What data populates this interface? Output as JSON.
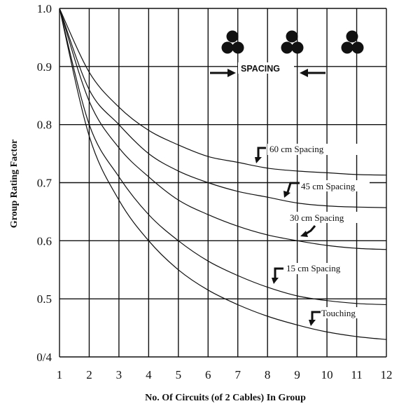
{
  "chart_data": {
    "type": "line",
    "xlabel": "No. Of Circuits (of 2 Cables) In Group",
    "ylabel": "Group Rating Factor",
    "xlim": [
      1,
      12
    ],
    "ylim": [
      0.4,
      1.0
    ],
    "x_ticks": [
      "1",
      "2",
      "3",
      "4",
      "5",
      "6",
      "7",
      "8",
      "9",
      "10",
      "11",
      "12"
    ],
    "y_ticks": [
      "0/4",
      "0.5",
      "0.6",
      "0.7",
      "0.8",
      "0.9",
      "1.0"
    ],
    "grid": true,
    "series": [
      {
        "name": "60 cm Spacing",
        "x": [
          1,
          2,
          3,
          4,
          5,
          6,
          7,
          8,
          9,
          10,
          11,
          12
        ],
        "y": [
          1.0,
          0.89,
          0.83,
          0.79,
          0.765,
          0.745,
          0.735,
          0.725,
          0.72,
          0.717,
          0.714,
          0.713
        ]
      },
      {
        "name": "45 cm Spacing",
        "x": [
          1,
          2,
          3,
          4,
          5,
          6,
          7,
          8,
          9,
          10,
          11,
          12
        ],
        "y": [
          1.0,
          0.86,
          0.8,
          0.75,
          0.72,
          0.7,
          0.685,
          0.675,
          0.665,
          0.66,
          0.658,
          0.657
        ]
      },
      {
        "name": "30 cm Spacing",
        "x": [
          1,
          2,
          3,
          4,
          5,
          6,
          7,
          8,
          9,
          10,
          11,
          12
        ],
        "y": [
          1.0,
          0.84,
          0.76,
          0.71,
          0.67,
          0.645,
          0.625,
          0.61,
          0.6,
          0.592,
          0.587,
          0.585
        ]
      },
      {
        "name": "15 cm Spacing",
        "x": [
          1,
          2,
          3,
          4,
          5,
          6,
          7,
          8,
          9,
          10,
          11,
          12
        ],
        "y": [
          1.0,
          0.8,
          0.71,
          0.645,
          0.6,
          0.565,
          0.54,
          0.52,
          0.505,
          0.497,
          0.492,
          0.49
        ]
      },
      {
        "name": "Touching",
        "x": [
          1,
          2,
          3,
          4,
          5,
          6,
          7,
          8,
          9,
          10,
          11,
          12
        ],
        "y": [
          1.0,
          0.78,
          0.67,
          0.6,
          0.55,
          0.515,
          0.49,
          0.47,
          0.455,
          0.443,
          0.435,
          0.43
        ]
      }
    ],
    "inset_label": "SPACING"
  }
}
